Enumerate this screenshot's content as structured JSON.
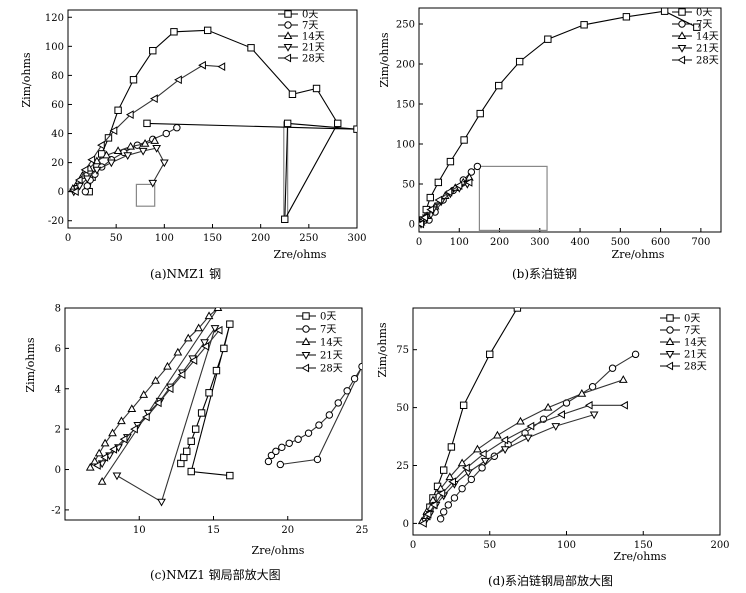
{
  "figure": {
    "captions": [
      "(a)NMZ1 钢",
      "(b)系泊链钢",
      "(c)NMZ1 钢局部放大图",
      "(d)系泊链钢局部放大图"
    ]
  },
  "chart_data": [
    {
      "type": "scatter",
      "panel_caption": "(a)NMZ1 钢",
      "xlabel": "Zre/ohms",
      "ylabel": "Zim/ohms",
      "xlim": [
        0,
        300
      ],
      "ylim": [
        -25,
        125
      ],
      "xticks": [
        "0",
        "50",
        "100",
        "150",
        "200",
        "250",
        "300"
      ],
      "yticks": [
        "-20",
        "0",
        "20",
        "40",
        "60",
        "80",
        "100",
        "120"
      ],
      "legend_position": "top-right",
      "series": [
        {
          "name": "0天",
          "marker": "square",
          "x": [
            22,
            25,
            30,
            35,
            42,
            52,
            68,
            88,
            110,
            145,
            190,
            233,
            258,
            280,
            225,
            228,
            300,
            82
          ],
          "y": [
            0,
            10,
            18,
            26,
            37,
            56,
            77,
            97,
            110,
            111,
            99,
            67,
            71,
            47,
            -19,
            47,
            43,
            47
          ]
        },
        {
          "name": "7天",
          "marker": "circle",
          "x": [
            18,
            20,
            23,
            28,
            35,
            45,
            58,
            72,
            88,
            102,
            113
          ],
          "y": [
            0,
            4,
            8,
            12,
            17,
            22,
            27,
            32,
            36,
            40,
            44
          ]
        },
        {
          "name": "14天",
          "marker": "triangle-up",
          "x": [
            5,
            10,
            15,
            22,
            30,
            40,
            52,
            65,
            80,
            90
          ],
          "y": [
            2,
            6,
            11,
            16,
            21,
            25,
            28,
            31,
            33,
            35
          ]
        },
        {
          "name": "21天",
          "marker": "triangle-down",
          "x": [
            6,
            12,
            20,
            30,
            45,
            62,
            78,
            92,
            100,
            88
          ],
          "y": [
            0,
            4,
            9,
            15,
            20,
            25,
            28,
            30,
            20,
            6
          ]
        },
        {
          "name": "28天",
          "marker": "triangle-left",
          "x": [
            8,
            12,
            18,
            25,
            35,
            48,
            65,
            90,
            115,
            140,
            160
          ],
          "y": [
            0,
            8,
            15,
            22,
            32,
            42,
            53,
            64,
            77,
            87,
            86
          ]
        }
      ]
    },
    {
      "type": "scatter",
      "panel_caption": "(b)系泊链钢",
      "xlabel": "Zre/ohms",
      "ylabel": "Zim/ohms",
      "xlim": [
        0,
        750
      ],
      "ylim": [
        -10,
        270
      ],
      "xticks": [
        "0",
        "100",
        "200",
        "300",
        "400",
        "500",
        "600",
        "700"
      ],
      "yticks": [
        "0",
        "50",
        "100",
        "150",
        "200",
        "250"
      ],
      "legend_position": "top-right",
      "series": [
        {
          "name": "0天",
          "marker": "square",
          "x": [
            10,
            18,
            28,
            48,
            78,
            112,
            152,
            198,
            250,
            320,
            410,
            515,
            610,
            690
          ],
          "y": [
            5,
            18,
            33,
            52,
            78,
            105,
            138,
            173,
            203,
            231,
            249,
            259,
            266,
            246
          ]
        },
        {
          "name": "7天",
          "marker": "circle",
          "x": [
            25,
            40,
            60,
            85,
            110,
            130,
            145
          ],
          "y": [
            5,
            15,
            30,
            42,
            55,
            65,
            72
          ]
        },
        {
          "name": "14天",
          "marker": "triangle-up",
          "x": [
            5,
            20,
            40,
            65,
            90,
            110,
            125
          ],
          "y": [
            2,
            10,
            22,
            35,
            45,
            52,
            58
          ]
        },
        {
          "name": "21天",
          "marker": "triangle-down",
          "x": [
            5,
            18,
            35,
            55,
            78,
            100,
            120
          ],
          "y": [
            0,
            8,
            18,
            28,
            38,
            45,
            50
          ]
        },
        {
          "name": "28天",
          "marker": "triangle-left",
          "x": [
            5,
            15,
            30,
            50,
            75,
            100,
            125
          ],
          "y": [
            0,
            8,
            18,
            30,
            40,
            48,
            52
          ]
        }
      ]
    },
    {
      "type": "scatter",
      "panel_caption": "(c)NMZ1 钢局部放大图",
      "xlabel": "Zre/ohms",
      "ylabel": "Zim/ohms",
      "xlim": [
        5,
        25
      ],
      "ylim": [
        -2.5,
        8
      ],
      "xticks": [
        "10",
        "15",
        "20",
        "25"
      ],
      "yticks": [
        "-2",
        "0",
        "2",
        "4",
        "6",
        "8"
      ],
      "legend_position": "top-right",
      "series": [
        {
          "name": "0天",
          "marker": "square",
          "x": [
            12.8,
            13.0,
            13.2,
            13.5,
            13.8,
            14.2,
            14.7,
            15.2,
            15.7,
            16.1,
            13.5,
            16.1
          ],
          "y": [
            0.3,
            0.6,
            0.9,
            1.4,
            2.0,
            2.8,
            3.8,
            4.9,
            6.0,
            7.2,
            -0.1,
            -0.3
          ]
        },
        {
          "name": "7天",
          "marker": "circle",
          "x": [
            18.7,
            18.9,
            19.2,
            19.6,
            20.1,
            20.7,
            21.4,
            22.1,
            22.8,
            23.4,
            24.0,
            24.5,
            25.0,
            22.0,
            19.5
          ],
          "y": [
            0.4,
            0.7,
            0.9,
            1.1,
            1.3,
            1.5,
            1.8,
            2.2,
            2.7,
            3.3,
            3.9,
            4.5,
            5.1,
            0.5,
            0.25
          ]
        },
        {
          "name": "14天",
          "marker": "triangle-up",
          "x": [
            6.7,
            7.0,
            7.3,
            7.7,
            8.2,
            8.8,
            9.5,
            10.3,
            11.1,
            11.9,
            12.6,
            13.3,
            14.0,
            14.7,
            15.3,
            7.5
          ],
          "y": [
            0.1,
            0.4,
            0.8,
            1.3,
            1.8,
            2.4,
            3.0,
            3.7,
            4.4,
            5.1,
            5.8,
            6.5,
            7.0,
            7.6,
            8.0,
            -0.6
          ]
        },
        {
          "name": "21天",
          "marker": "triangle-down",
          "x": [
            7.5,
            8.0,
            8.6,
            9.2,
            9.9,
            10.6,
            11.4,
            12.1,
            12.9,
            13.6,
            14.4,
            15.1,
            11.5,
            8.5
          ],
          "y": [
            0.3,
            0.7,
            1.1,
            1.6,
            2.2,
            2.8,
            3.4,
            4.1,
            4.8,
            5.5,
            6.3,
            7.0,
            -1.6,
            -0.3
          ]
        },
        {
          "name": "28天",
          "marker": "triangle-left",
          "x": [
            7.2,
            7.7,
            8.3,
            9.0,
            9.7,
            10.5,
            11.3,
            12.1,
            12.9,
            13.7,
            14.5,
            15.4
          ],
          "y": [
            0.2,
            0.6,
            1.0,
            1.5,
            2.0,
            2.6,
            3.3,
            4.0,
            4.7,
            5.4,
            6.1,
            6.9
          ]
        }
      ]
    },
    {
      "type": "scatter",
      "panel_caption": "(d)系泊链钢局部放大图",
      "xlabel": "Zre/ohms",
      "ylabel": "Zim/ohms",
      "xlim": [
        0,
        200
      ],
      "ylim": [
        -5,
        93
      ],
      "xticks": [
        "0",
        "50",
        "100",
        "150",
        "200"
      ],
      "yticks": [
        "0",
        "25",
        "50",
        "75"
      ],
      "legend_position": "top-right",
      "series": [
        {
          "name": "0天",
          "marker": "square",
          "x": [
            9,
            11,
            13,
            16,
            20,
            25,
            33,
            50,
            68
          ],
          "y": [
            3,
            7,
            11,
            16,
            23,
            33,
            51,
            73,
            93
          ]
        },
        {
          "name": "7天",
          "marker": "circle",
          "x": [
            18,
            20,
            23,
            27,
            32,
            38,
            45,
            53,
            62,
            73,
            85,
            100,
            117,
            130,
            145
          ],
          "y": [
            2,
            5,
            8,
            11,
            15,
            19,
            24,
            29,
            34,
            39,
            45,
            52,
            59,
            67,
            73
          ]
        },
        {
          "name": "14天",
          "marker": "triangle-up",
          "x": [
            6,
            9,
            13,
            18,
            24,
            32,
            42,
            55,
            70,
            88,
            110,
            137
          ],
          "y": [
            1,
            5,
            10,
            15,
            20,
            26,
            32,
            38,
            44,
            50,
            56,
            62
          ]
        },
        {
          "name": "21天",
          "marker": "triangle-down",
          "x": [
            8,
            11,
            15,
            20,
            27,
            36,
            47,
            60,
            75,
            93,
            118
          ],
          "y": [
            1,
            4,
            8,
            12,
            17,
            22,
            27,
            32,
            37,
            42,
            47
          ]
        },
        {
          "name": "28天",
          "marker": "triangle-left",
          "x": [
            7,
            10,
            14,
            19,
            26,
            35,
            46,
            60,
            77,
            97,
            115,
            138
          ],
          "y": [
            0,
            4,
            8,
            13,
            18,
            24,
            30,
            36,
            42,
            47,
            51,
            51
          ]
        }
      ]
    }
  ]
}
